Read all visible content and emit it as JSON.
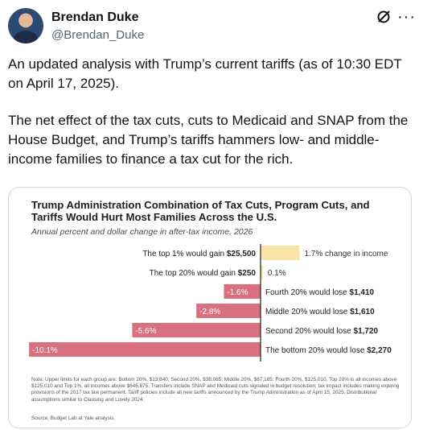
{
  "author": {
    "name": "Brendan Duke",
    "handle": "@Brendan_Duke"
  },
  "icons": {
    "grok": "grok-icon",
    "more": "more-icon",
    "avatar": "avatar"
  },
  "tweet": {
    "paragraph1": "An updated analysis with Trump’s current tariffs (as of 10:30 EDT on April 17, 2025).",
    "paragraph2": "The net effect of the tax cuts, cuts to Medicaid and SNAP from the House Budget, and Trump’s tariffs hammers low- and middle-income families to finance a tax cut for the rich."
  },
  "chart_data": {
    "type": "bar",
    "title": "Trump Administration Combination of Tax Cuts, Program Cuts, and Tariffs Would Hurt Most Families Across the U.S.",
    "subtitle": "Annual percent and dollar change in after-tax income, 2026",
    "gain_color": "#fae3a6",
    "loss_color": "#d9707f",
    "bars": [
      {
        "value": 1.7,
        "value_label": "1.7% change in income",
        "text": "The top 1% would gain ",
        "amount": "$25,500"
      },
      {
        "value": 0.1,
        "value_label": "0.1%",
        "text": "The top 20% would gain ",
        "amount": "$250"
      },
      {
        "value": -1.6,
        "value_label": "-1.6%",
        "text": "Fourth 20% would lose ",
        "amount": "$1,410"
      },
      {
        "value": -2.8,
        "value_label": "-2.8%",
        "text": "Middle 20% would lose ",
        "amount": "$1,610"
      },
      {
        "value": -5.6,
        "value_label": "-5.6%",
        "text": "Second 20% would lose ",
        "amount": "$1,720"
      },
      {
        "value": -10.1,
        "value_label": "-10.1%",
        "text": "The bottom 20% would lose ",
        "amount": "$2,270"
      }
    ],
    "note": "Note: Upper limits for each group are: Bottom 20%, $13,840; Second 20%, $38,065; Middle 20%, $67,185; Fourth 20%, $125,010. Top 20% is all incomes above $125,010 and Top 1%, all incomes above $646,875. Transfers include SNAP and Medicaid cuts signaled in budget resolution; tax impact includes making expiring provisions of the 2017 tax law permanent. Tariff policies include all new tariffs announced by the Trump Administration as of April 15, 2025. Distributional assumptions similar to Clausing and Lovely 2024.",
    "source": "Source: Budget Lab at Yale analysis."
  }
}
